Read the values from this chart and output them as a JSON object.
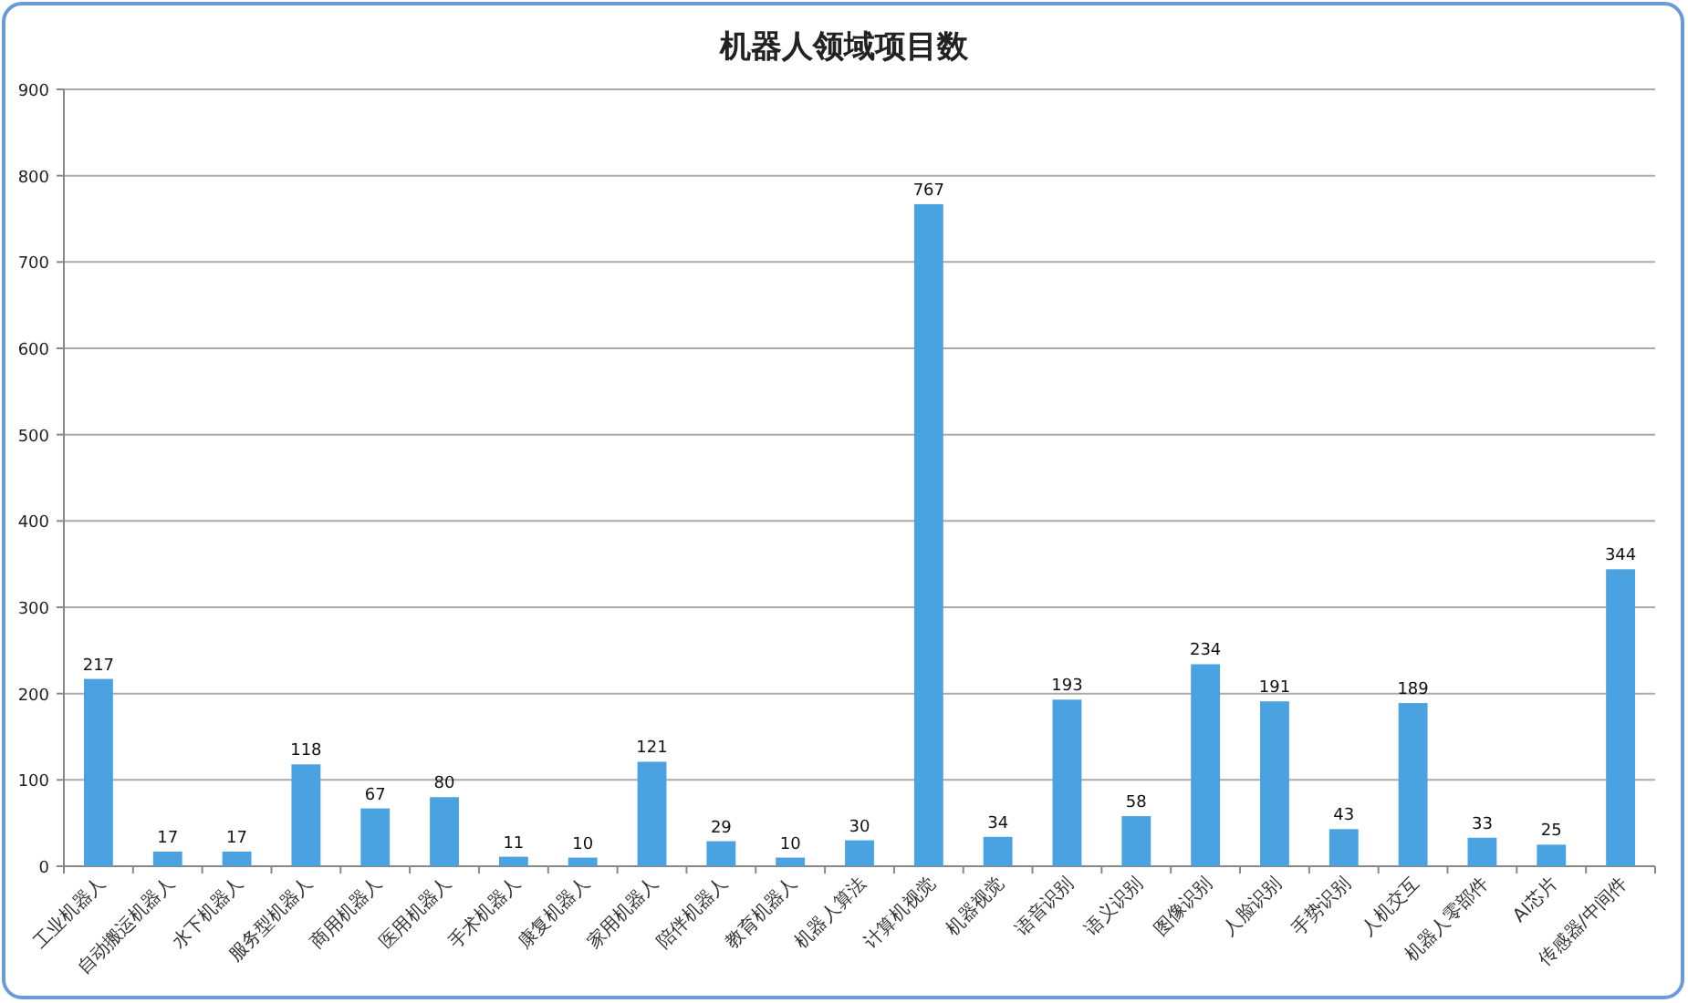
{
  "chart_data": {
    "type": "bar",
    "title": "机器人领域项目数",
    "categories": [
      "工业机器人",
      "自动搬运机器人",
      "水下机器人",
      "服务型机器人",
      "商用机器人",
      "医用机器人",
      "手术机器人",
      "康复机器人",
      "家用机器人",
      "陪伴机器人",
      "教育机器人",
      "机器人算法",
      "计算机视觉",
      "机器视觉",
      "语音识别",
      "语义识别",
      "图像识别",
      "人脸识别",
      "手势识别",
      "人机交互",
      "机器人零部件",
      "AI芯片",
      "传感器/中间件"
    ],
    "values": [
      217,
      17,
      17,
      118,
      67,
      80,
      11,
      10,
      121,
      29,
      10,
      30,
      767,
      34,
      193,
      58,
      234,
      191,
      43,
      189,
      33,
      25,
      344
    ],
    "color": "#4aa3e0",
    "ylim": [
      0,
      900
    ],
    "yticks": [
      0,
      100,
      200,
      300,
      400,
      500,
      600,
      700,
      800,
      900
    ],
    "grid": "y",
    "data_labels": true
  }
}
